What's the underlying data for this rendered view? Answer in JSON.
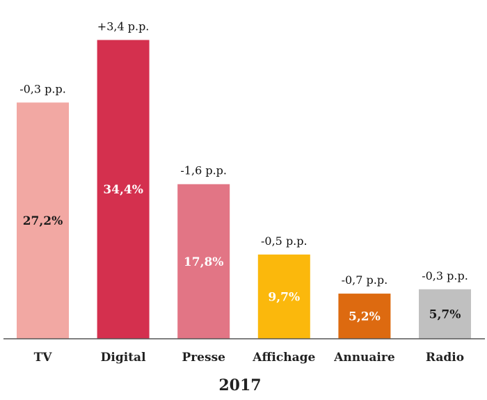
{
  "chart_data": {
    "type": "bar",
    "title": "",
    "xlabel": "2017",
    "ylabel": "",
    "ylim": [
      0,
      36.2
    ],
    "grid": false,
    "legend": "none",
    "categories": [
      "TV",
      "Digital",
      "Presse",
      "Affichage",
      "Annuaire",
      "Radio"
    ],
    "values": [
      27.2,
      34.4,
      17.8,
      9.7,
      5.2,
      5.7
    ],
    "value_labels": [
      "27,2%",
      "34,4%",
      "17,8%",
      "9,7%",
      "5,2%",
      "5,7%"
    ],
    "change_labels": [
      "-0,3 p.p.",
      "+3,4 p.p.",
      "-1,6 p.p.",
      "-0,5 p.p.",
      "-0,7 p.p.",
      "-0,3 p.p."
    ],
    "colors": [
      "#f2a8a3",
      "#d4304e",
      "#e27585",
      "#fbb80c",
      "#dd6a10",
      "#c0c0c0"
    ],
    "value_label_colors": [
      "#1a1a1a",
      "#ffffff",
      "#ffffff",
      "#ffffff",
      "#ffffff",
      "#1a1a1a"
    ]
  }
}
